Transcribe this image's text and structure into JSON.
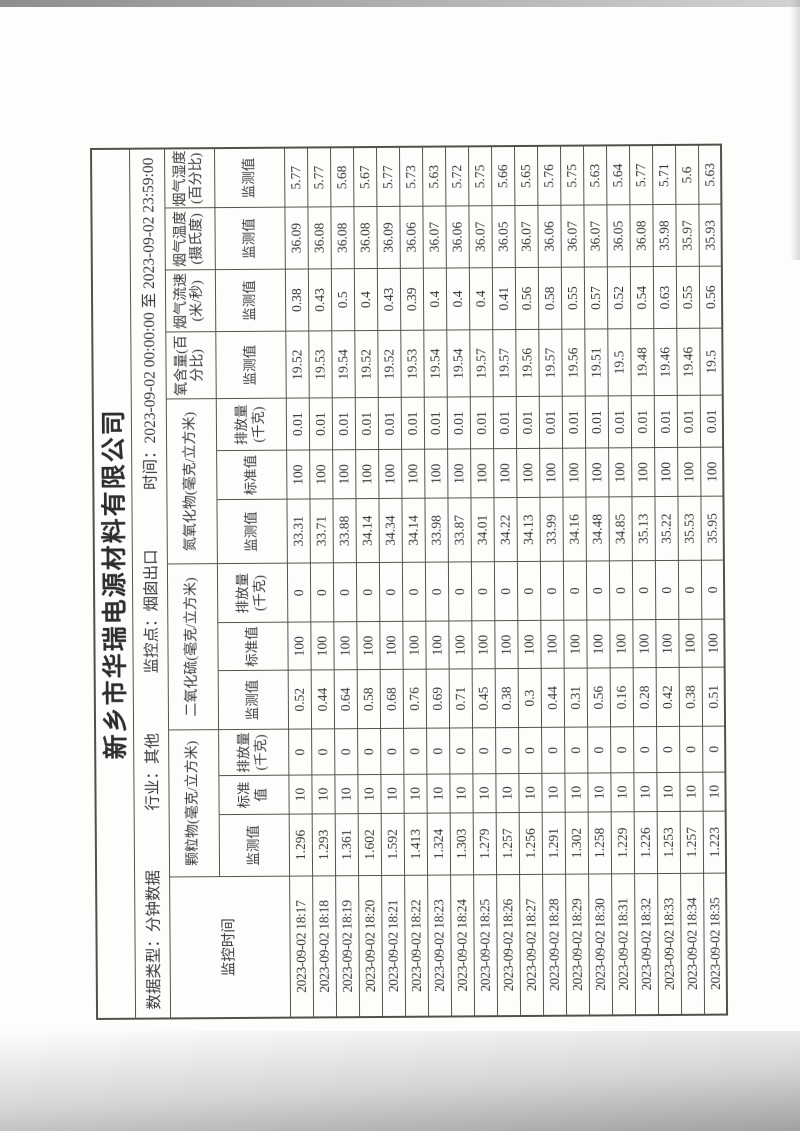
{
  "report": {
    "title": "新乡市华瑞电源材料有限公司",
    "meta_segments": [
      "数据类型：分钟数据",
      "行业：其他",
      "监控点：烟囱出口",
      "时间：2023-09-02 00:00:00 至 2023-09-02 23:59:00"
    ]
  },
  "table": {
    "time_header": "监控时间",
    "groups": [
      {
        "label": "颗粒物(毫克/立方米)",
        "subs": [
          "监测值",
          "标准值",
          "排放量(千克)"
        ]
      },
      {
        "label": "二氧化硫(毫克/立方米)",
        "subs": [
          "监测值",
          "标准值",
          "排放量(千克)"
        ]
      },
      {
        "label": "氮氧化物(毫克/立方米)",
        "subs": [
          "监测值",
          "标准值",
          "排放量(千克)"
        ]
      },
      {
        "label": "氧含量(百分比)",
        "subs": [
          "监测值"
        ]
      },
      {
        "label": "烟气流速(米/秒)",
        "subs": [
          "监测值"
        ]
      },
      {
        "label": "烟气温度(摄氏度)",
        "subs": [
          "监测值"
        ]
      },
      {
        "label": "烟气湿度(百分比)",
        "subs": [
          "监测值"
        ]
      }
    ],
    "rows": [
      {
        "time": "2023-09-02 18:17",
        "pm": [
          "1.296",
          "10",
          "0"
        ],
        "so2": [
          "0.52",
          "100",
          "0"
        ],
        "nox": [
          "33.31",
          "100",
          "0.01"
        ],
        "o2": "19.52",
        "flow": "0.38",
        "temp": "36.09",
        "humidity": "5.77"
      },
      {
        "time": "2023-09-02 18:18",
        "pm": [
          "1.293",
          "10",
          "0"
        ],
        "so2": [
          "0.44",
          "100",
          "0"
        ],
        "nox": [
          "33.71",
          "100",
          "0.01"
        ],
        "o2": "19.53",
        "flow": "0.43",
        "temp": "36.08",
        "humidity": "5.77"
      },
      {
        "time": "2023-09-02 18:19",
        "pm": [
          "1.361",
          "10",
          "0"
        ],
        "so2": [
          "0.64",
          "100",
          "0"
        ],
        "nox": [
          "33.88",
          "100",
          "0.01"
        ],
        "o2": "19.54",
        "flow": "0.5",
        "temp": "36.08",
        "humidity": "5.68"
      },
      {
        "time": "2023-09-02 18:20",
        "pm": [
          "1.602",
          "10",
          "0"
        ],
        "so2": [
          "0.58",
          "100",
          "0"
        ],
        "nox": [
          "34.14",
          "100",
          "0.01"
        ],
        "o2": "19.52",
        "flow": "0.4",
        "temp": "36.08",
        "humidity": "5.67"
      },
      {
        "time": "2023-09-02 18:21",
        "pm": [
          "1.592",
          "10",
          "0"
        ],
        "so2": [
          "0.68",
          "100",
          "0"
        ],
        "nox": [
          "34.34",
          "100",
          "0.01"
        ],
        "o2": "19.52",
        "flow": "0.43",
        "temp": "36.09",
        "humidity": "5.77"
      },
      {
        "time": "2023-09-02 18:22",
        "pm": [
          "1.413",
          "10",
          "0"
        ],
        "so2": [
          "0.76",
          "100",
          "0"
        ],
        "nox": [
          "34.14",
          "100",
          "0.01"
        ],
        "o2": "19.53",
        "flow": "0.39",
        "temp": "36.06",
        "humidity": "5.73"
      },
      {
        "time": "2023-09-02 18:23",
        "pm": [
          "1.324",
          "10",
          "0"
        ],
        "so2": [
          "0.69",
          "100",
          "0"
        ],
        "nox": [
          "33.98",
          "100",
          "0.01"
        ],
        "o2": "19.54",
        "flow": "0.4",
        "temp": "36.07",
        "humidity": "5.63"
      },
      {
        "time": "2023-09-02 18:24",
        "pm": [
          "1.303",
          "10",
          "0"
        ],
        "so2": [
          "0.71",
          "100",
          "0"
        ],
        "nox": [
          "33.87",
          "100",
          "0.01"
        ],
        "o2": "19.54",
        "flow": "0.4",
        "temp": "36.06",
        "humidity": "5.72"
      },
      {
        "time": "2023-09-02 18:25",
        "pm": [
          "1.279",
          "10",
          "0"
        ],
        "so2": [
          "0.45",
          "100",
          "0"
        ],
        "nox": [
          "34.01",
          "100",
          "0.01"
        ],
        "o2": "19.57",
        "flow": "0.4",
        "temp": "36.07",
        "humidity": "5.75"
      },
      {
        "time": "2023-09-02 18:26",
        "pm": [
          "1.257",
          "10",
          "0"
        ],
        "so2": [
          "0.38",
          "100",
          "0"
        ],
        "nox": [
          "34.22",
          "100",
          "0.01"
        ],
        "o2": "19.57",
        "flow": "0.41",
        "temp": "36.05",
        "humidity": "5.66"
      },
      {
        "time": "2023-09-02 18:27",
        "pm": [
          "1.256",
          "10",
          "0"
        ],
        "so2": [
          "0.3",
          "100",
          "0"
        ],
        "nox": [
          "34.13",
          "100",
          "0.01"
        ],
        "o2": "19.56",
        "flow": "0.56",
        "temp": "36.07",
        "humidity": "5.65"
      },
      {
        "time": "2023-09-02 18:28",
        "pm": [
          "1.291",
          "10",
          "0"
        ],
        "so2": [
          "0.44",
          "100",
          "0"
        ],
        "nox": [
          "33.99",
          "100",
          "0.01"
        ],
        "o2": "19.57",
        "flow": "0.58",
        "temp": "36.06",
        "humidity": "5.76"
      },
      {
        "time": "2023-09-02 18:29",
        "pm": [
          "1.302",
          "10",
          "0"
        ],
        "so2": [
          "0.31",
          "100",
          "0"
        ],
        "nox": [
          "34.16",
          "100",
          "0.01"
        ],
        "o2": "19.56",
        "flow": "0.55",
        "temp": "36.07",
        "humidity": "5.75"
      },
      {
        "time": "2023-09-02 18:30",
        "pm": [
          "1.258",
          "10",
          "0"
        ],
        "so2": [
          "0.56",
          "100",
          "0"
        ],
        "nox": [
          "34.48",
          "100",
          "0.01"
        ],
        "o2": "19.51",
        "flow": "0.57",
        "temp": "36.07",
        "humidity": "5.63"
      },
      {
        "time": "2023-09-02 18:31",
        "pm": [
          "1.229",
          "10",
          "0"
        ],
        "so2": [
          "0.16",
          "100",
          "0"
        ],
        "nox": [
          "34.85",
          "100",
          "0.01"
        ],
        "o2": "19.5",
        "flow": "0.52",
        "temp": "36.05",
        "humidity": "5.64"
      },
      {
        "time": "2023-09-02 18:32",
        "pm": [
          "1.226",
          "10",
          "0"
        ],
        "so2": [
          "0.28",
          "100",
          "0"
        ],
        "nox": [
          "35.13",
          "100",
          "0.01"
        ],
        "o2": "19.48",
        "flow": "0.54",
        "temp": "36.08",
        "humidity": "5.77"
      },
      {
        "time": "2023-09-02 18:33",
        "pm": [
          "1.253",
          "10",
          "0"
        ],
        "so2": [
          "0.42",
          "100",
          "0"
        ],
        "nox": [
          "35.22",
          "100",
          "0.01"
        ],
        "o2": "19.46",
        "flow": "0.63",
        "temp": "35.98",
        "humidity": "5.71"
      },
      {
        "time": "2023-09-02 18:34",
        "pm": [
          "1.257",
          "10",
          "0"
        ],
        "so2": [
          "0.38",
          "100",
          "0"
        ],
        "nox": [
          "35.53",
          "100",
          "0.01"
        ],
        "o2": "19.46",
        "flow": "0.55",
        "temp": "35.97",
        "humidity": "5.6"
      },
      {
        "time": "2023-09-02 18:35",
        "pm": [
          "1.223",
          "10",
          "0"
        ],
        "so2": [
          "0.51",
          "100",
          "0"
        ],
        "nox": [
          "35.95",
          "100",
          "0.01"
        ],
        "o2": "19.5",
        "flow": "0.56",
        "temp": "35.93",
        "humidity": "5.63"
      }
    ]
  }
}
